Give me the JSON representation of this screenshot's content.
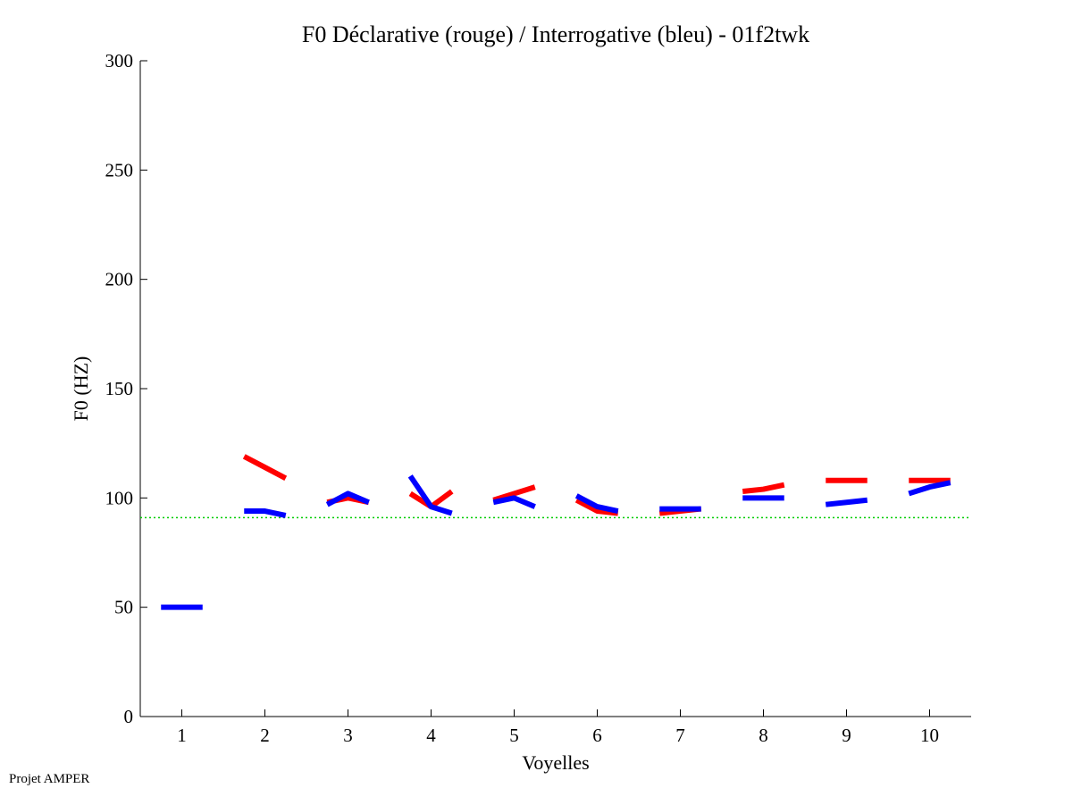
{
  "footer": {
    "text": "Projet AMPER"
  },
  "chart_data": {
    "type": "line",
    "title": "F0 Déclarative (rouge) / Interrogative (bleu) - 01f2twk",
    "xlabel": "Voyelles",
    "ylabel": "F0 (HZ)",
    "xlim": [
      0.5,
      10.5
    ],
    "ylim": [
      0,
      300
    ],
    "x_ticks": [
      1,
      2,
      3,
      4,
      5,
      6,
      7,
      8,
      9,
      10
    ],
    "y_ticks": [
      0,
      50,
      100,
      150,
      200,
      250,
      300
    ],
    "grid": false,
    "reference_line": {
      "y": 91,
      "color": "#00cc00",
      "style": "dotted"
    },
    "segment_offsets": [
      -0.25,
      0,
      0.25
    ],
    "series": [
      {
        "color": "#ff0000",
        "segments": [
          {
            "x": 2,
            "values": [
              119,
              114,
              109
            ]
          },
          {
            "x": 3,
            "values": [
              98,
              100,
              98
            ]
          },
          {
            "x": 4,
            "values": [
              102,
              96,
              103
            ]
          },
          {
            "x": 5,
            "values": [
              99,
              102,
              105
            ]
          },
          {
            "x": 6,
            "values": [
              99,
              94,
              93
            ]
          },
          {
            "x": 7,
            "values": [
              93,
              94,
              95
            ]
          },
          {
            "x": 8,
            "values": [
              103,
              104,
              106
            ]
          },
          {
            "x": 9,
            "values": [
              108,
              108,
              108
            ]
          },
          {
            "x": 10,
            "values": [
              108,
              108,
              108
            ]
          }
        ]
      },
      {
        "color": "#0000ff",
        "segments": [
          {
            "x": 1,
            "values": [
              50,
              50,
              50
            ]
          },
          {
            "x": 2,
            "values": [
              94,
              94,
              92
            ]
          },
          {
            "x": 3,
            "values": [
              97,
              102,
              98
            ]
          },
          {
            "x": 4,
            "values": [
              110,
              96,
              93
            ]
          },
          {
            "x": 5,
            "values": [
              98,
              100,
              96
            ]
          },
          {
            "x": 6,
            "values": [
              101,
              96,
              94
            ]
          },
          {
            "x": 7,
            "values": [
              95,
              95,
              95
            ]
          },
          {
            "x": 8,
            "values": [
              100,
              100,
              100
            ]
          },
          {
            "x": 9,
            "values": [
              97,
              98,
              99
            ]
          },
          {
            "x": 10,
            "values": [
              102,
              105,
              107
            ]
          }
        ]
      }
    ]
  }
}
